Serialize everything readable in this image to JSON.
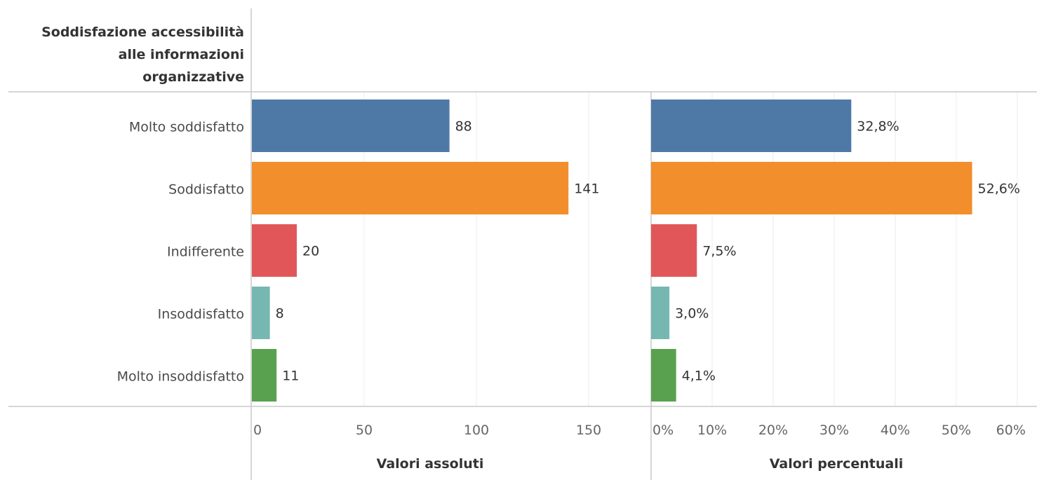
{
  "chart_data": {
    "type": "bar",
    "orientation": "horizontal",
    "row_header": [
      "Soddisfazione accessibilità",
      "alle informazioni",
      "organizzative"
    ],
    "categories": [
      "Molto soddisfatto",
      "Soddisfatto",
      "Indifferente",
      "Insoddisfatto",
      "Molto insoddisfatto"
    ],
    "colors": [
      "#4e79a7",
      "#f28e2b",
      "#e15759",
      "#76b7b2",
      "#59a14f"
    ],
    "grid": true,
    "panels": [
      {
        "xlabel": "Valori assoluti",
        "xlim": [
          0,
          165
        ],
        "ticks": [
          0,
          50,
          100,
          150
        ],
        "tick_labels": [
          "0",
          "50",
          "100",
          "150"
        ],
        "values": [
          88,
          141,
          20,
          8,
          11
        ],
        "data_labels": [
          "88",
          "141",
          "20",
          "8",
          "11"
        ]
      },
      {
        "xlabel": "Valori percentuali",
        "xlim": [
          0,
          63
        ],
        "ticks": [
          0,
          10,
          20,
          30,
          40,
          50,
          60
        ],
        "tick_labels": [
          "0%",
          "10%",
          "20%",
          "30%",
          "40%",
          "50%",
          "60%"
        ],
        "values": [
          32.8,
          52.6,
          7.5,
          3.0,
          4.1
        ],
        "data_labels": [
          "32,8%",
          "52,6%",
          "7,5%",
          "3,0%",
          "4,1%"
        ]
      }
    ]
  }
}
